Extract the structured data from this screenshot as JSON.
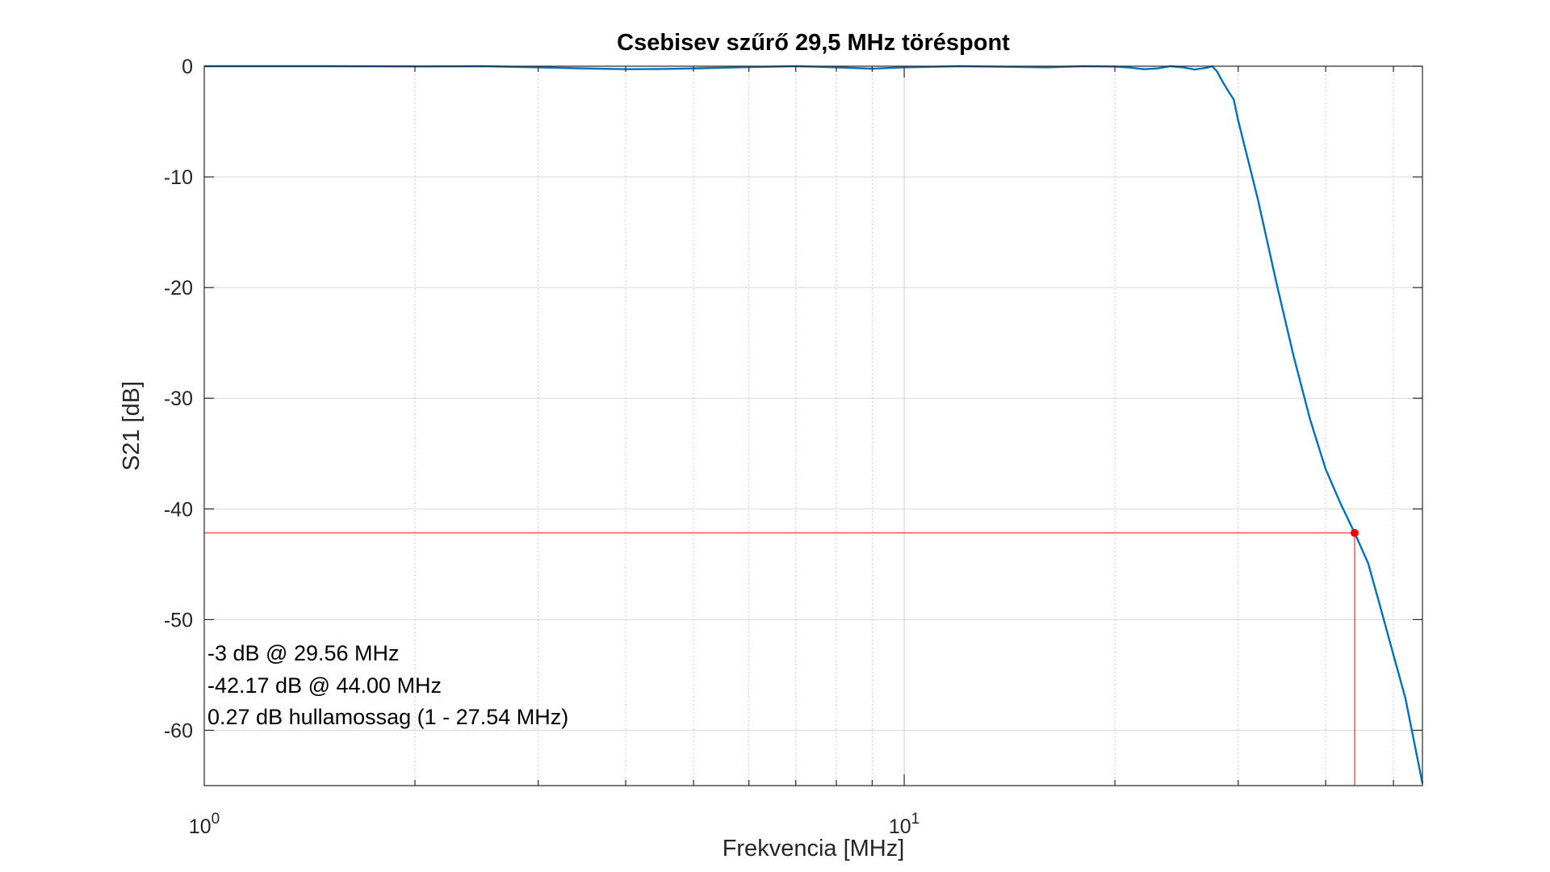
{
  "chart_data": {
    "type": "line",
    "title": "Csebisev szűrő 29,5 MHz töréspont",
    "xlabel": "Frekvencia [MHz]",
    "ylabel": "S21 [dB]",
    "xscale": "log",
    "xlim": [
      1,
      55
    ],
    "ylim": [
      -65,
      0
    ],
    "grid": true,
    "x_ticks": [
      {
        "value": 1,
        "base": "10",
        "exp": "0"
      },
      {
        "value": 10,
        "base": "10",
        "exp": "1"
      }
    ],
    "y_ticks": [
      {
        "value": 0,
        "label": "0"
      },
      {
        "value": -10,
        "label": "-10"
      },
      {
        "value": -20,
        "label": "-20"
      },
      {
        "value": -30,
        "label": "-30"
      },
      {
        "value": -40,
        "label": "-40"
      },
      {
        "value": -50,
        "label": "-50"
      },
      {
        "value": -60,
        "label": "-60"
      }
    ],
    "series": [
      {
        "color": "#0072BD",
        "x": [
          1,
          1.5,
          2,
          2.5,
          3,
          3.5,
          4,
          4.5,
          5,
          6,
          7,
          8,
          9,
          10,
          12,
          14,
          16,
          18,
          20,
          21,
          22,
          23,
          24,
          25,
          26,
          27,
          27.54,
          28,
          28.5,
          29,
          29.56,
          30,
          32,
          34,
          36,
          38,
          40,
          42,
          44,
          46,
          48,
          50,
          52,
          55
        ],
        "y": [
          0,
          0,
          -0.02,
          0,
          -0.1,
          -0.2,
          -0.27,
          -0.25,
          -0.2,
          -0.08,
          0,
          -0.1,
          -0.22,
          -0.1,
          0,
          -0.05,
          -0.1,
          0,
          -0.03,
          -0.12,
          -0.27,
          -0.2,
          0,
          -0.1,
          -0.3,
          -0.15,
          0,
          -0.5,
          -1.4,
          -2.2,
          -3,
          -4.9,
          -12,
          -19.5,
          -26.2,
          -31.9,
          -36.4,
          -39.5,
          -42.17,
          -44.9,
          -49.1,
          -53.2,
          -57.1,
          -64.8
        ]
      }
    ],
    "marker": {
      "x": 44.0,
      "y": -42.17,
      "color": "#FF0000"
    },
    "annotations": [
      "-3 dB @ 29.56 MHz",
      "-42.17 dB @ 44.00 MHz",
      "0.27 dB hullamossag (1 - 27.54 MHz)"
    ]
  }
}
